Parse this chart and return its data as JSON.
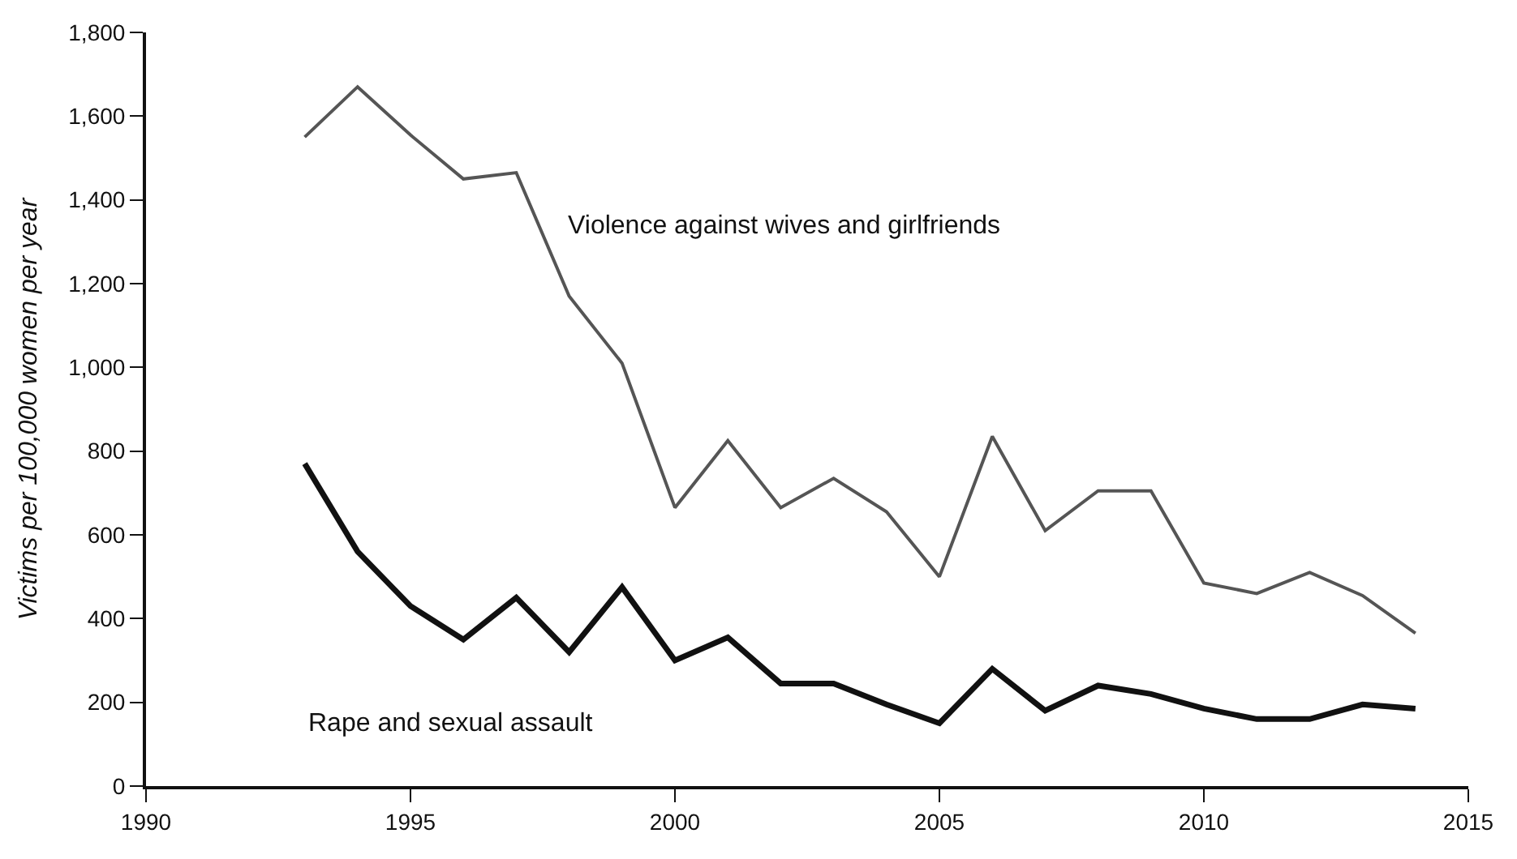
{
  "chart_data": {
    "type": "line",
    "ylabel": "Victims per 100,000 women per year",
    "x": [
      1993,
      1994,
      1995,
      1996,
      1997,
      1998,
      1999,
      2000,
      2001,
      2002,
      2003,
      2004,
      2005,
      2006,
      2007,
      2008,
      2009,
      2010,
      2011,
      2012,
      2013,
      2014
    ],
    "series": [
      {
        "name": "Violence against wives and girlfriends",
        "color": "#555555",
        "values": [
          1550,
          1670,
          1555,
          1450,
          1465,
          1170,
          1010,
          665,
          825,
          665,
          735,
          655,
          500,
          835,
          610,
          705,
          705,
          485,
          460,
          510,
          455,
          365
        ]
      },
      {
        "name": "Rape and sexual assault",
        "color": "#111111",
        "values": [
          770,
          560,
          430,
          350,
          450,
          320,
          475,
          300,
          355,
          245,
          245,
          195,
          150,
          280,
          180,
          240,
          220,
          185,
          160,
          160,
          195,
          185
        ]
      }
    ],
    "xlim": [
      1990,
      2015
    ],
    "xticks": [
      1990,
      1995,
      2000,
      2005,
      2010,
      2015
    ],
    "ylim": [
      0,
      1800
    ],
    "yticks": [
      {
        "value": 0,
        "label": "0"
      },
      {
        "value": 200,
        "label": "200"
      },
      {
        "value": 400,
        "label": "400"
      },
      {
        "value": 600,
        "label": "600"
      },
      {
        "value": 800,
        "label": "800"
      },
      {
        "value": 1000,
        "label": "1,000"
      },
      {
        "value": 1200,
        "label": "1,200"
      },
      {
        "value": 1400,
        "label": "1,400"
      },
      {
        "value": 1600,
        "label": "1,600"
      },
      {
        "value": 1800,
        "label": "1,800"
      }
    ],
    "legend": false,
    "marker": "none",
    "line_style": "solid"
  }
}
